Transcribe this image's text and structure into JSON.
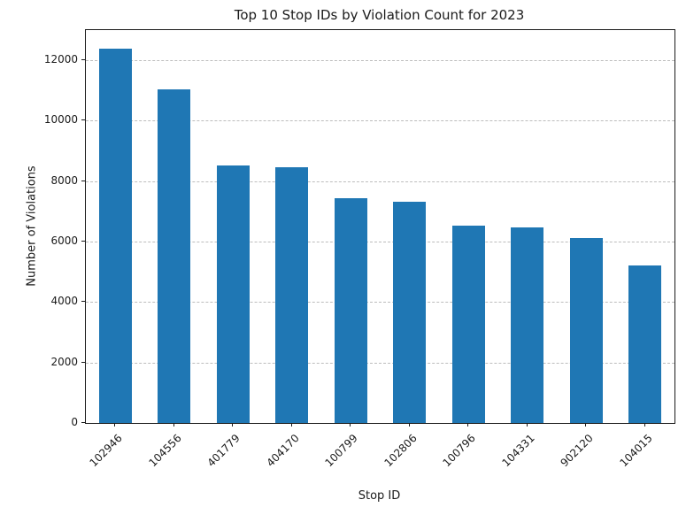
{
  "chart_data": {
    "type": "bar",
    "title": "Top 10 Stop IDs by Violation Count for 2023",
    "xlabel": "Stop ID",
    "ylabel": "Number of Violations",
    "categories": [
      "102946",
      "104556",
      "401779",
      "404170",
      "100799",
      "102806",
      "100796",
      "104331",
      "902120",
      "104015"
    ],
    "values": [
      12400,
      11050,
      8520,
      8470,
      7450,
      7320,
      6520,
      6460,
      6110,
      5220
    ],
    "ylim": [
      0,
      13000
    ],
    "yticks": [
      0,
      2000,
      4000,
      6000,
      8000,
      10000,
      12000
    ],
    "grid": "horizontal-dashed",
    "legend": "none",
    "bar_color": "#1f77b4"
  }
}
